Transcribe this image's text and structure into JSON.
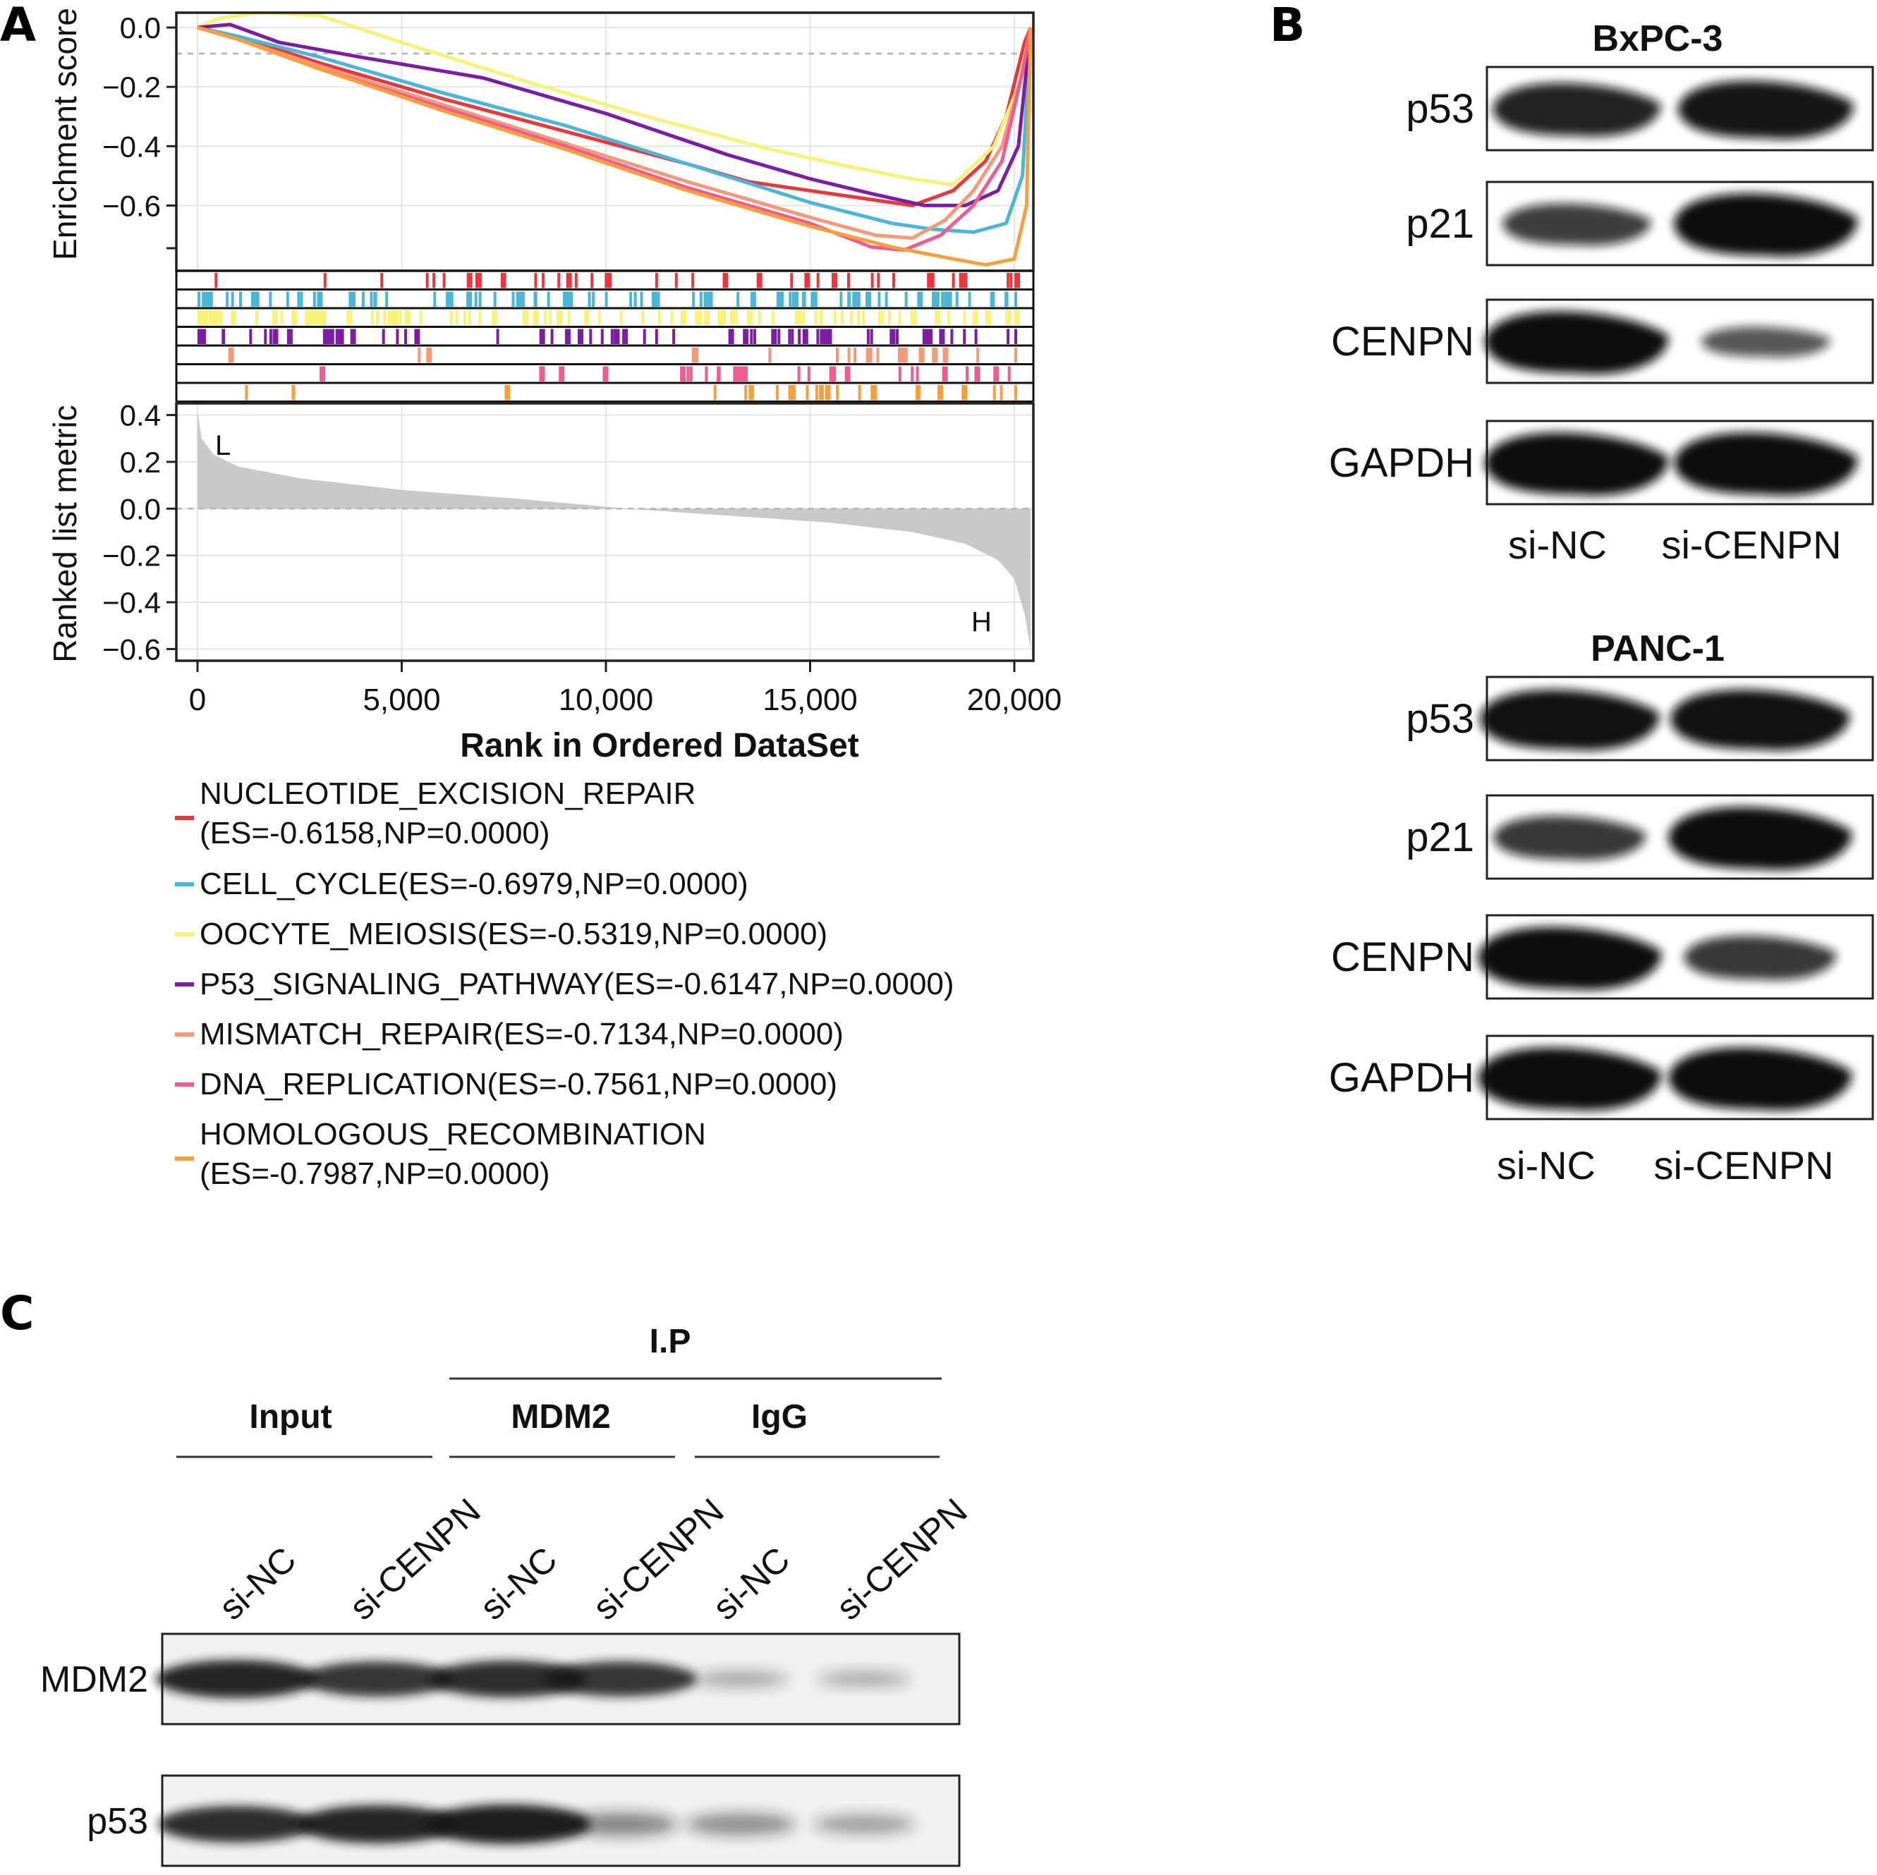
{
  "figure": {
    "panel_labels": {
      "a": "A",
      "b": "B",
      "c": "C"
    }
  },
  "panel_a": {
    "chart_data": {
      "type": "line",
      "xlabel": "Rank in Ordered DataSet",
      "ylabel_top": "Enrichment score",
      "ylabel_bottom": "Ranked list metric",
      "xlim": [
        0,
        20500
      ],
      "x_ticks": [
        "0",
        "5,000",
        "10,000",
        "15,000",
        "20,000"
      ],
      "x_tick_values": [
        0,
        5000,
        10000,
        15000,
        20000
      ],
      "es_ylim": [
        -0.82,
        0.05
      ],
      "es_ticks": [
        "0.0",
        "−0.2",
        "−0.4",
        "−0.6"
      ],
      "es_tick_values": [
        0,
        -0.2,
        -0.4,
        -0.6
      ],
      "metric_ylim": [
        -0.65,
        0.45
      ],
      "metric_ticks": [
        "0.4",
        "0.2",
        "0.0",
        "−0.2",
        "−0.4",
        "−0.6"
      ],
      "metric_tick_values": [
        0.4,
        0.2,
        0,
        -0.2,
        -0.4,
        -0.6
      ],
      "metric_annotations": {
        "low": "L",
        "high": "H"
      },
      "grid": true,
      "legend_placement": "bottom",
      "series": [
        {
          "label_line1": "NUCLEOTIDE_EXCISION_REPAIR",
          "label_line2": "(ES=-0.6158,NP=0.0000)",
          "color": "#e8383d",
          "x": [
            0,
            1000,
            3000,
            6000,
            9000,
            12000,
            13500,
            16500,
            17500,
            18500,
            19300,
            19800,
            20250,
            20400
          ],
          "y": [
            0,
            -0.03,
            -0.12,
            -0.24,
            -0.35,
            -0.46,
            -0.52,
            -0.58,
            -0.6,
            -0.55,
            -0.45,
            -0.3,
            -0.05,
            0
          ]
        },
        {
          "label_line1": "CELL_CYCLE(ES=-0.6979,NP=0.0000)",
          "label_line2": "",
          "color": "#4cb6d6",
          "x": [
            0,
            1000,
            3000,
            6000,
            9000,
            12000,
            15000,
            17000,
            18000,
            19000,
            19800,
            20200,
            20400
          ],
          "y": [
            0,
            -0.03,
            -0.1,
            -0.22,
            -0.33,
            -0.46,
            -0.59,
            -0.66,
            -0.68,
            -0.69,
            -0.66,
            -0.5,
            0
          ]
        },
        {
          "label_line1": "OOCYTE_MEIOSIS(ES=-0.5319,NP=0.0000)",
          "label_line2": "",
          "color": "#f7f27a",
          "x": [
            0,
            500,
            1500,
            3000,
            5000,
            8000,
            11000,
            14000,
            16000,
            17500,
            18500,
            19500,
            20100,
            20400
          ],
          "y": [
            0,
            0.03,
            0.05,
            0.04,
            -0.05,
            -0.18,
            -0.3,
            -0.41,
            -0.47,
            -0.51,
            -0.53,
            -0.4,
            -0.2,
            0
          ]
        },
        {
          "label_line1": "P53_SIGNALING_PATHWAY(ES=-0.6147,NP=0.0000)",
          "label_line2": "",
          "color": "#7a1fa2",
          "x": [
            0,
            800,
            2000,
            4000,
            7000,
            10000,
            13000,
            15000,
            16500,
            17800,
            18800,
            19600,
            20100,
            20400
          ],
          "y": [
            0,
            0.01,
            -0.05,
            -0.1,
            -0.17,
            -0.29,
            -0.43,
            -0.51,
            -0.56,
            -0.6,
            -0.6,
            -0.55,
            -0.4,
            0
          ]
        },
        {
          "label_line1": "MISMATCH_REPAIR(ES=-0.7134,NP=0.0000)",
          "label_line2": "",
          "color": "#f29a7a",
          "x": [
            0,
            1000,
            3000,
            6000,
            9000,
            12000,
            15000,
            16600,
            17500,
            18300,
            19000,
            19700,
            20200,
            20400
          ],
          "y": [
            0,
            -0.04,
            -0.13,
            -0.26,
            -0.39,
            -0.52,
            -0.64,
            -0.7,
            -0.71,
            -0.65,
            -0.55,
            -0.4,
            -0.15,
            0
          ]
        },
        {
          "label_line1": "DNA_REPLICATION(ES=-0.7561,NP=0.0000)",
          "label_line2": "",
          "color": "#ee5d92",
          "x": [
            0,
            1000,
            3000,
            6000,
            9000,
            12000,
            15000,
            16500,
            17300,
            18200,
            19000,
            19700,
            20200,
            20400
          ],
          "y": [
            0,
            -0.04,
            -0.14,
            -0.27,
            -0.4,
            -0.54,
            -0.66,
            -0.74,
            -0.75,
            -0.7,
            -0.6,
            -0.45,
            -0.15,
            0
          ]
        },
        {
          "label_line1": "HOMOLOGOUS_RECOMBINATION",
          "label_line2": "(ES=-0.7987,NP=0.0000)",
          "color": "#f5a03c",
          "x": [
            0,
            1000,
            3000,
            6000,
            9000,
            12000,
            15000,
            17000,
            18500,
            19300,
            20000,
            20300,
            20400
          ],
          "y": [
            0,
            -0.04,
            -0.14,
            -0.28,
            -0.41,
            -0.55,
            -0.67,
            -0.74,
            -0.78,
            -0.8,
            -0.78,
            -0.6,
            0
          ]
        }
      ]
    }
  },
  "panel_b": {
    "lane_labels": [
      "si-NC",
      "si-CENPN"
    ],
    "blots": [
      {
        "cell_line": "BxPC-3",
        "rows": [
          {
            "protein": "p53",
            "intensity": [
              0.8,
              0.9
            ]
          },
          {
            "protein": "p21",
            "intensity": [
              0.55,
              1.0
            ]
          },
          {
            "protein": "CENPN",
            "intensity": [
              1.0,
              0.3
            ]
          },
          {
            "protein": "GAPDH",
            "intensity": [
              1.0,
              1.0
            ]
          }
        ]
      },
      {
        "cell_line": "PANC-1",
        "rows": [
          {
            "protein": "p53",
            "intensity": [
              0.95,
              0.95
            ]
          },
          {
            "protein": "p21",
            "intensity": [
              0.6,
              1.0
            ]
          },
          {
            "protein": "CENPN",
            "intensity": [
              1.0,
              0.6
            ]
          },
          {
            "protein": "GAPDH",
            "intensity": [
              1.0,
              1.0
            ]
          }
        ]
      }
    ]
  },
  "panel_c": {
    "ip_label": "I.P",
    "groups": [
      "Input",
      "MDM2",
      "IgG"
    ],
    "lane_labels": [
      "si-NC",
      "si-CENPN",
      "si-NC",
      "si-CENPN",
      "si-NC",
      "si-CENPN"
    ],
    "rows": [
      {
        "protein": "MDM2",
        "intensity": [
          0.9,
          0.8,
          0.85,
          0.8,
          0.12,
          0.1
        ]
      },
      {
        "protein": "p53",
        "intensity": [
          0.85,
          0.9,
          0.95,
          0.35,
          0.3,
          0.2
        ]
      }
    ]
  }
}
